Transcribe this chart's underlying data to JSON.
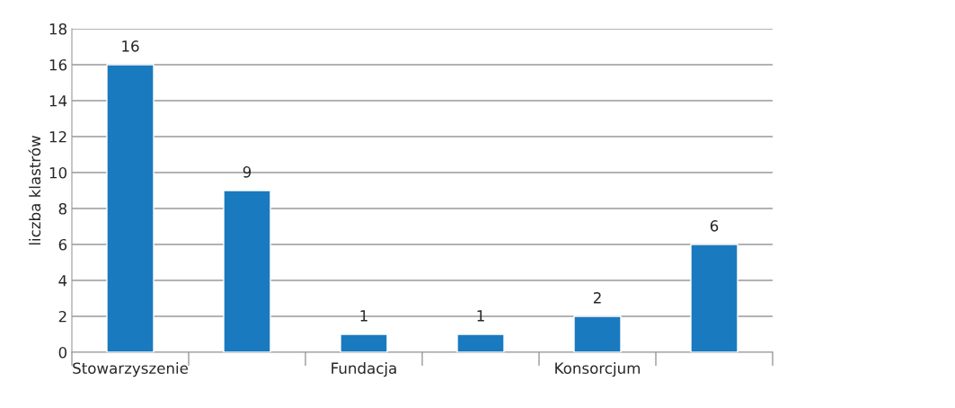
{
  "chart_data": {
    "type": "bar",
    "ylabel": "liczba klastrów",
    "categories": [
      "Stowarzyszenie",
      null,
      "Fundacja",
      null,
      "Konsorcjum",
      null
    ],
    "values": [
      16,
      9,
      1,
      1,
      2,
      6
    ],
    "color": "#1a7abf",
    "ylim": [
      0,
      18
    ],
    "yticks": [
      0,
      2,
      4,
      6,
      8,
      10,
      12,
      14,
      16,
      18
    ],
    "grid": "y",
    "data_labels": true,
    "legend": false
  }
}
